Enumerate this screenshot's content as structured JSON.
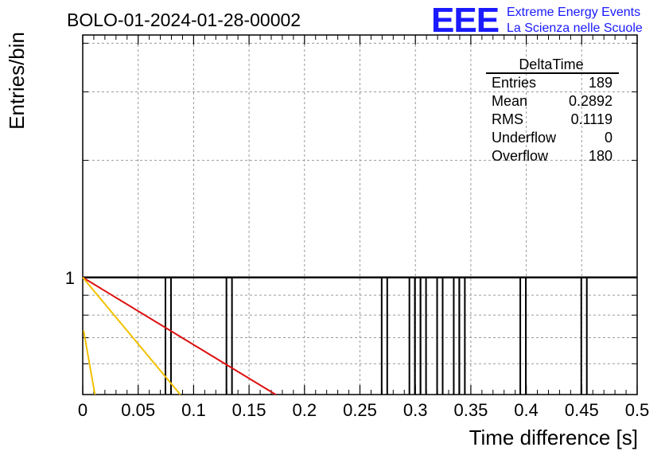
{
  "chart_data": {
    "type": "histogram",
    "title": "BOLO-01-2024-01-28-00002",
    "xlabel": "Time difference [s]",
    "ylabel": "Entries/bin",
    "xlim": [
      0,
      0.5
    ],
    "y_log_scale": true,
    "ylim": [
      0.5,
      4.2
    ],
    "grid": true,
    "x_ticks": [
      "0",
      "0.05",
      "0.1",
      "0.15",
      "0.2",
      "0.25",
      "0.3",
      "0.35",
      "0.4",
      "0.45",
      "0.5"
    ],
    "x_tick_values": [
      0,
      0.05,
      0.1,
      0.15,
      0.2,
      0.25,
      0.3,
      0.35,
      0.4,
      0.45,
      0.5
    ],
    "y_ticks": [
      "1"
    ],
    "y_tick_values": [
      1
    ],
    "bins": [
      {
        "x0": 0.0746,
        "x1": 0.0796,
        "value": 1
      },
      {
        "x0": 0.1296,
        "x1": 0.1346,
        "value": 1
      },
      {
        "x0": 0.2696,
        "x1": 0.2746,
        "value": 1
      },
      {
        "x0": 0.2946,
        "x1": 0.2996,
        "value": 1
      },
      {
        "x0": 0.2996,
        "x1": 0.3046,
        "value": 1
      },
      {
        "x0": 0.3046,
        "x1": 0.3096,
        "value": 1
      },
      {
        "x0": 0.3196,
        "x1": 0.3246,
        "value": 1
      },
      {
        "x0": 0.3346,
        "x1": 0.3396,
        "value": 1
      },
      {
        "x0": 0.3396,
        "x1": 0.3446,
        "value": 1
      },
      {
        "x0": 0.3946,
        "x1": 0.3996,
        "value": 1
      },
      {
        "x0": 0.4496,
        "x1": 0.4546,
        "value": 1
      }
    ],
    "baseline_value": 1,
    "fit_lines": [
      {
        "color": "#dd1111",
        "points": [
          [
            0,
            1
          ],
          [
            0.174,
            0.5
          ]
        ]
      },
      {
        "color": "#f2c000",
        "points": [
          [
            0,
            1
          ],
          [
            0.088,
            0.5
          ]
        ]
      },
      {
        "color": "#f2c000",
        "points": [
          [
            0.0008,
            0.73
          ],
          [
            0.011,
            0.5
          ]
        ]
      }
    ],
    "stats": {
      "title": "DeltaTime",
      "rows": [
        {
          "label": "Entries",
          "value": "189"
        },
        {
          "label": "Mean",
          "value": "0.2892"
        },
        {
          "label": "RMS",
          "value": "0.1119"
        },
        {
          "label": "Underflow",
          "value": "0"
        },
        {
          "label": "Overflow",
          "value": "180"
        }
      ]
    }
  },
  "logo": {
    "mark": "EEE",
    "line1": "Extreme Energy Events",
    "line2": "La Scienza nelle Scuole",
    "color": "#1a1aff"
  },
  "colors": {
    "axis": "#000000",
    "grid": "#9a9a9a",
    "hist": "#000000"
  }
}
